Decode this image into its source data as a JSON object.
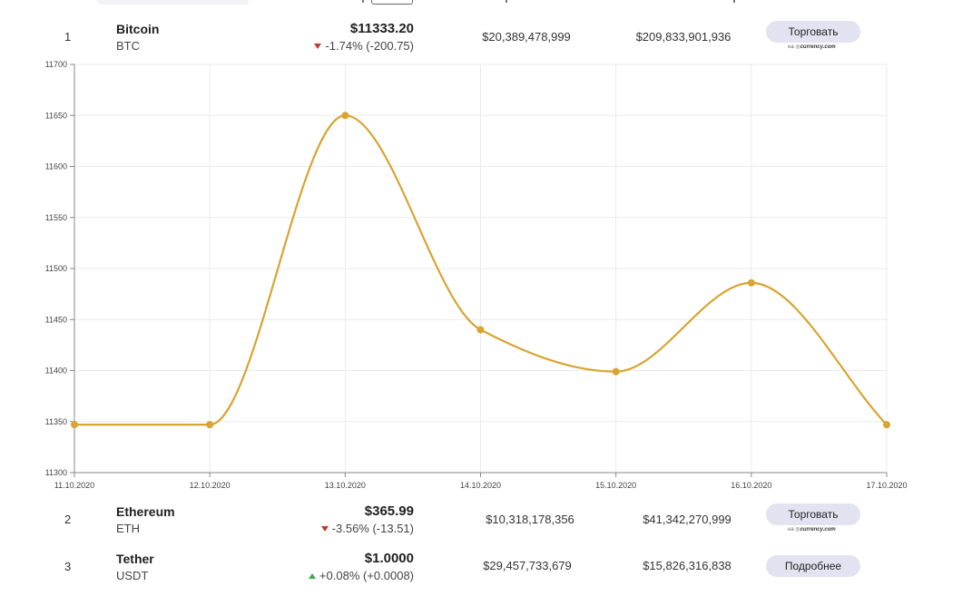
{
  "columns_partial_top": true,
  "rows": [
    {
      "rank": "1",
      "name": "Bitcoin",
      "symbol": "BTC",
      "price": "$11333.20",
      "change": "-1.74% (-200.75)",
      "direction": "down",
      "volume": "$20,389,478,999",
      "market_cap": "$209,833,901,936",
      "action": "Торговать",
      "via_prefix": "на",
      "via_brand": "currency.com"
    },
    {
      "rank": "2",
      "name": "Ethereum",
      "symbol": "ETH",
      "price": "$365.99",
      "change": "-3.56% (-13.51)",
      "direction": "down",
      "volume": "$10,318,178,356",
      "market_cap": "$41,342,270,999",
      "action": "Торговать",
      "via_prefix": "на",
      "via_brand": "currency.com"
    },
    {
      "rank": "3",
      "name": "Tether",
      "symbol": "USDT",
      "price": "$1.0000",
      "change": "+0.08% (+0.0008)",
      "direction": "up",
      "volume": "$29,457,733,679",
      "market_cap": "$15,826,316,838",
      "action": "Подробнее"
    }
  ],
  "chart_data": {
    "type": "line",
    "categories": [
      "11.10.2020",
      "12.10.2020",
      "13.10.2020",
      "14.10.2020",
      "15.10.2020",
      "16.10.2020",
      "17.10.2020"
    ],
    "series": [
      {
        "values": [
          11347,
          11347,
          11650,
          11440,
          11399,
          11486,
          11347
        ],
        "color": "#d9a431"
      }
    ],
    "yticks": [
      11300,
      11350,
      11400,
      11450,
      11500,
      11550,
      11600,
      11650,
      11700
    ],
    "ylim": [
      11300,
      11700
    ],
    "grid": true,
    "smooth": true,
    "colors": {
      "line": "#d9a431",
      "grid": "#ebebeb",
      "axis": "#888888"
    }
  }
}
